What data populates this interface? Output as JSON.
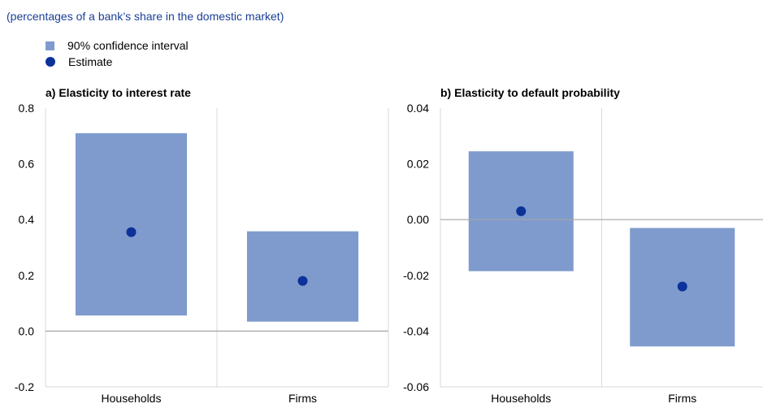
{
  "subtitle": "(percentages of a bank’s share in the domestic market)",
  "legend": {
    "items": [
      {
        "label": "90% confidence interval",
        "color": "#7f9bcd",
        "shape": "box"
      },
      {
        "label": "Estimate",
        "color": "#0c3199",
        "shape": "dot"
      }
    ]
  },
  "colors": {
    "interval": "#7f9bcd",
    "estimate": "#0c3199",
    "grid": "#d9d9d9",
    "zero": "#a6a6a6"
  },
  "chart_data": [
    {
      "type": "range-dot",
      "title": "a) Elasticity to interest rate",
      "categories": [
        "Households",
        "Firms"
      ],
      "ylim": [
        -0.2,
        0.8
      ],
      "yticks": [
        "0.8",
        "0.6",
        "0.4",
        "0.2",
        "0.0",
        "-0.2"
      ],
      "series": [
        {
          "name": "90% confidence interval",
          "low": [
            0.056,
            0.034
          ],
          "high": [
            0.71,
            0.358
          ]
        },
        {
          "name": "Estimate",
          "values": [
            0.355,
            0.18
          ]
        }
      ]
    },
    {
      "type": "range-dot",
      "title": "b) Elasticity to default probability",
      "categories": [
        "Households",
        "Firms"
      ],
      "ylim": [
        -0.06,
        0.04
      ],
      "yticks": [
        "0.04",
        "0.02",
        "0.00",
        "-0.02",
        "-0.04",
        "-0.06"
      ],
      "series": [
        {
          "name": "90% confidence interval",
          "low": [
            -0.0185,
            -0.0455
          ],
          "high": [
            0.0245,
            -0.003
          ]
        },
        {
          "name": "Estimate",
          "values": [
            0.003,
            -0.024
          ]
        }
      ]
    }
  ]
}
